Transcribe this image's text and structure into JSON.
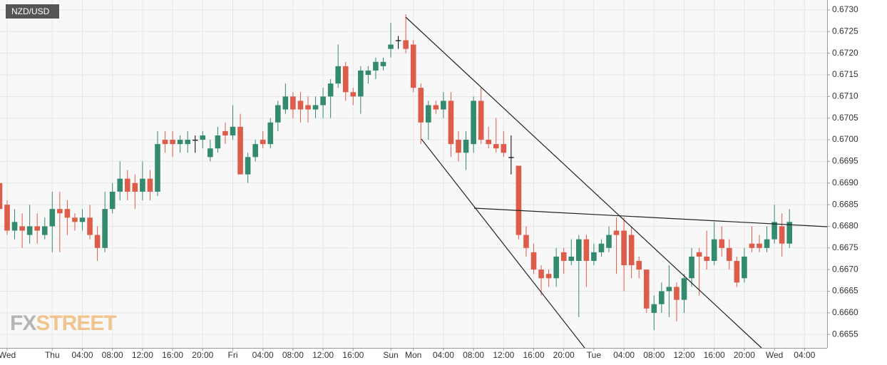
{
  "chart_data": {
    "type": "candlestick",
    "title": "NZD/USD",
    "watermark": [
      "FX",
      "STREET"
    ],
    "categories": [
      null,
      "Wed",
      null,
      null,
      null,
      null,
      null,
      "Thu",
      null,
      null,
      null,
      "04:00",
      null,
      null,
      null,
      "08:00",
      null,
      null,
      null,
      "12:00",
      null,
      null,
      null,
      "16:00",
      null,
      null,
      null,
      "20:00",
      null,
      null,
      null,
      "Fri",
      null,
      null,
      null,
      "04:00",
      null,
      null,
      null,
      "08:00",
      null,
      null,
      null,
      "12:00",
      null,
      null,
      null,
      "16:00",
      null,
      null,
      null,
      null,
      "Sun",
      null,
      null,
      "Mon",
      null,
      null,
      null,
      "04:00",
      null,
      null,
      null,
      "08:00",
      null,
      null,
      null,
      "12:00",
      null,
      null,
      null,
      "16:00",
      null,
      null,
      null,
      "20:00",
      null,
      null,
      null,
      "Tue",
      null,
      null,
      null,
      "04:00",
      null,
      null,
      null,
      "08:00",
      null,
      null,
      null,
      "12:00",
      null,
      null,
      null,
      "16:00",
      null,
      null,
      null,
      "20:00",
      null,
      null,
      null,
      "Wed",
      null,
      null,
      null,
      "04:00"
    ],
    "open": [
      0.669,
      0.6685,
      0.6679,
      0.668,
      0.6678,
      0.668,
      0.6678,
      0.668,
      0.6684,
      0.6684,
      0.6682,
      0.6681,
      0.6682,
      0.6678,
      0.6675,
      0.6684,
      0.6688,
      0.6691,
      0.669,
      0.6688,
      0.6691,
      0.6688,
      0.67,
      0.67,
      0.6699,
      0.6699,
      0.67,
      0.67,
      0.6696,
      0.6698,
      0.6702,
      0.6701,
      0.6703,
      0.6692,
      0.6696,
      0.67,
      0.6699,
      0.6704,
      0.6707,
      0.671,
      0.6709,
      0.6708,
      0.6707,
      0.6708,
      0.671,
      0.6713,
      0.6717,
      0.6711,
      0.671,
      0.6715,
      0.6716,
      0.6717,
      0.6721,
      0.6723,
      0.6723,
      0.6722,
      0.6712,
      0.6704,
      0.6708,
      0.6707,
      0.6709,
      0.67,
      0.6697,
      0.6699,
      0.6709,
      0.67,
      0.6699,
      0.6699,
      0.6696,
      0.6694,
      0.6678,
      0.6674,
      0.667,
      0.6669,
      0.6668,
      0.6674,
      0.6672,
      0.6672,
      0.6677,
      0.6672,
      0.6674,
      0.6675,
      0.6679,
      0.6679,
      0.6678,
      0.6672,
      0.667,
      0.666,
      0.6662,
      0.6665,
      0.6666,
      0.6663,
      0.6668,
      0.6674,
      0.6673,
      0.6672,
      0.6677,
      0.6675,
      0.6672,
      0.6668,
      0.6676,
      0.6676,
      0.6675,
      0.6677,
      0.668,
      0.6676,
      null,
      null
    ],
    "high": [
      0.6691,
      0.6686,
      0.6684,
      0.6683,
      0.6685,
      0.6683,
      0.6682,
      0.6688,
      0.6688,
      0.6686,
      0.6683,
      0.6684,
      0.6685,
      0.668,
      0.6688,
      0.669,
      0.6695,
      0.6693,
      0.6692,
      0.6695,
      0.6693,
      0.6702,
      0.6702,
      0.6702,
      0.6701,
      0.6702,
      0.6701,
      0.6702,
      0.67,
      0.6703,
      0.6704,
      0.6708,
      0.6706,
      0.6697,
      0.67,
      0.6702,
      0.6705,
      0.6709,
      0.6713,
      0.6711,
      0.6711,
      0.671,
      0.671,
      0.6712,
      0.6714,
      0.6722,
      0.6718,
      0.6712,
      0.6717,
      0.6717,
      0.6719,
      0.6719,
      0.6727,
      0.6724,
      0.6729,
      0.6723,
      0.6713,
      0.6709,
      0.6709,
      0.6711,
      0.6711,
      0.6702,
      0.6702,
      0.671,
      0.6712,
      0.6703,
      0.6705,
      0.6702,
      0.6701,
      0.6694,
      0.668,
      0.6676,
      0.6671,
      0.667,
      0.6675,
      0.6675,
      0.6677,
      0.6678,
      0.6678,
      0.6676,
      0.6677,
      0.668,
      0.6682,
      0.6682,
      0.668,
      0.6673,
      0.667,
      0.6664,
      0.6667,
      0.6671,
      0.6667,
      0.6669,
      0.6675,
      0.6675,
      0.6679,
      0.6681,
      0.668,
      0.6677,
      0.6673,
      0.6675,
      0.668,
      0.6678,
      0.668,
      0.6685,
      0.6683,
      0.6684,
      null,
      null
    ],
    "low": [
      0.6681,
      0.6678,
      0.6677,
      0.6675,
      0.6676,
      0.6676,
      0.6677,
      0.6674,
      0.6674,
      0.6678,
      0.6679,
      0.6679,
      0.6677,
      0.6672,
      0.6674,
      0.6683,
      0.6686,
      0.6686,
      0.6684,
      0.6686,
      0.6686,
      0.6687,
      0.6697,
      0.6696,
      0.6697,
      0.6697,
      0.6697,
      0.6698,
      0.6695,
      0.6697,
      0.6699,
      0.67,
      0.6692,
      0.669,
      0.6695,
      0.6698,
      0.6698,
      0.6702,
      0.6706,
      0.6705,
      0.6704,
      0.6704,
      0.6705,
      0.6705,
      0.6705,
      0.6712,
      0.6709,
      0.6708,
      0.6706,
      0.6713,
      0.6714,
      0.6716,
      0.6719,
      0.6721,
      0.672,
      0.6711,
      0.6699,
      0.67,
      0.6706,
      0.6705,
      0.6696,
      0.6695,
      0.6693,
      0.6697,
      0.6699,
      0.6698,
      0.6697,
      0.6696,
      0.6692,
      0.6677,
      0.6673,
      0.6669,
      0.6664,
      0.6666,
      0.6666,
      0.6669,
      0.6671,
      0.6659,
      0.6666,
      0.6671,
      0.6673,
      0.6674,
      0.6669,
      0.6665,
      0.6668,
      0.6668,
      0.666,
      0.6656,
      0.666,
      0.6659,
      0.6658,
      0.666,
      0.6666,
      0.6664,
      0.667,
      0.6671,
      0.6673,
      0.667,
      0.6666,
      0.6667,
      0.6674,
      0.6674,
      0.6674,
      0.6676,
      0.6673,
      0.6675,
      null,
      null
    ],
    "close": [
      0.6684,
      0.6679,
      0.6681,
      0.6679,
      0.668,
      0.6679,
      0.668,
      0.6684,
      0.6683,
      0.6682,
      0.6681,
      0.6682,
      0.6678,
      0.6675,
      0.6684,
      0.6688,
      0.6691,
      0.6688,
      0.6688,
      0.6691,
      0.6688,
      0.6699,
      0.6699,
      0.6699,
      0.67,
      0.67,
      0.67,
      0.6701,
      0.6698,
      0.6701,
      0.6701,
      0.6703,
      0.6692,
      0.6696,
      0.6699,
      0.6699,
      0.6704,
      0.6708,
      0.671,
      0.6707,
      0.6707,
      0.6707,
      0.6708,
      0.671,
      0.6713,
      0.6717,
      0.6711,
      0.671,
      0.6716,
      0.6716,
      0.6718,
      0.6718,
      0.6722,
      0.6723,
      0.6721,
      0.6712,
      0.6704,
      0.6708,
      0.6707,
      0.6709,
      0.6699,
      0.6697,
      0.67,
      0.6709,
      0.67,
      0.6699,
      0.6698,
      0.6697,
      0.6696,
      0.6678,
      0.6675,
      0.667,
      0.6668,
      0.6668,
      0.6673,
      0.6672,
      0.6673,
      0.6677,
      0.6672,
      0.6674,
      0.6676,
      0.6678,
      0.6678,
      0.6671,
      0.6671,
      0.667,
      0.6661,
      0.6662,
      0.6665,
      0.6666,
      0.6663,
      0.6668,
      0.6673,
      0.6673,
      0.6672,
      0.6677,
      0.6675,
      0.6672,
      0.6667,
      0.6673,
      0.6675,
      0.6675,
      0.6677,
      0.6681,
      0.6676,
      0.6681,
      null,
      null
    ],
    "up_color": "#338a6f",
    "down_color": "#dd5c4a",
    "flat_color": "#000000",
    "ylim": [
      0.66519,
      0.67323
    ],
    "yticks": [
      {
        "value": 0.6655,
        "label": "0.6655"
      },
      {
        "value": 0.666,
        "label": "0.6660"
      },
      {
        "value": 0.6665,
        "label": "0.6665"
      },
      {
        "value": 0.667,
        "label": "0.6670"
      },
      {
        "value": 0.6675,
        "label": "0.6675"
      },
      {
        "value": 0.668,
        "label": "0.6680"
      },
      {
        "value": 0.6685,
        "label": "0.6685"
      },
      {
        "value": 0.669,
        "label": "0.6690"
      },
      {
        "value": 0.6695,
        "label": "0.6695"
      },
      {
        "value": 0.67,
        "label": "0.6700"
      },
      {
        "value": 0.6705,
        "label": "0.6705"
      },
      {
        "value": 0.671,
        "label": "0.6710"
      },
      {
        "value": 0.6715,
        "label": "0.6715"
      },
      {
        "value": 0.672,
        "label": "0.6720"
      },
      {
        "value": 0.6725,
        "label": "0.6725"
      },
      {
        "value": 0.673,
        "label": "0.6730"
      }
    ],
    "grid": true
  }
}
